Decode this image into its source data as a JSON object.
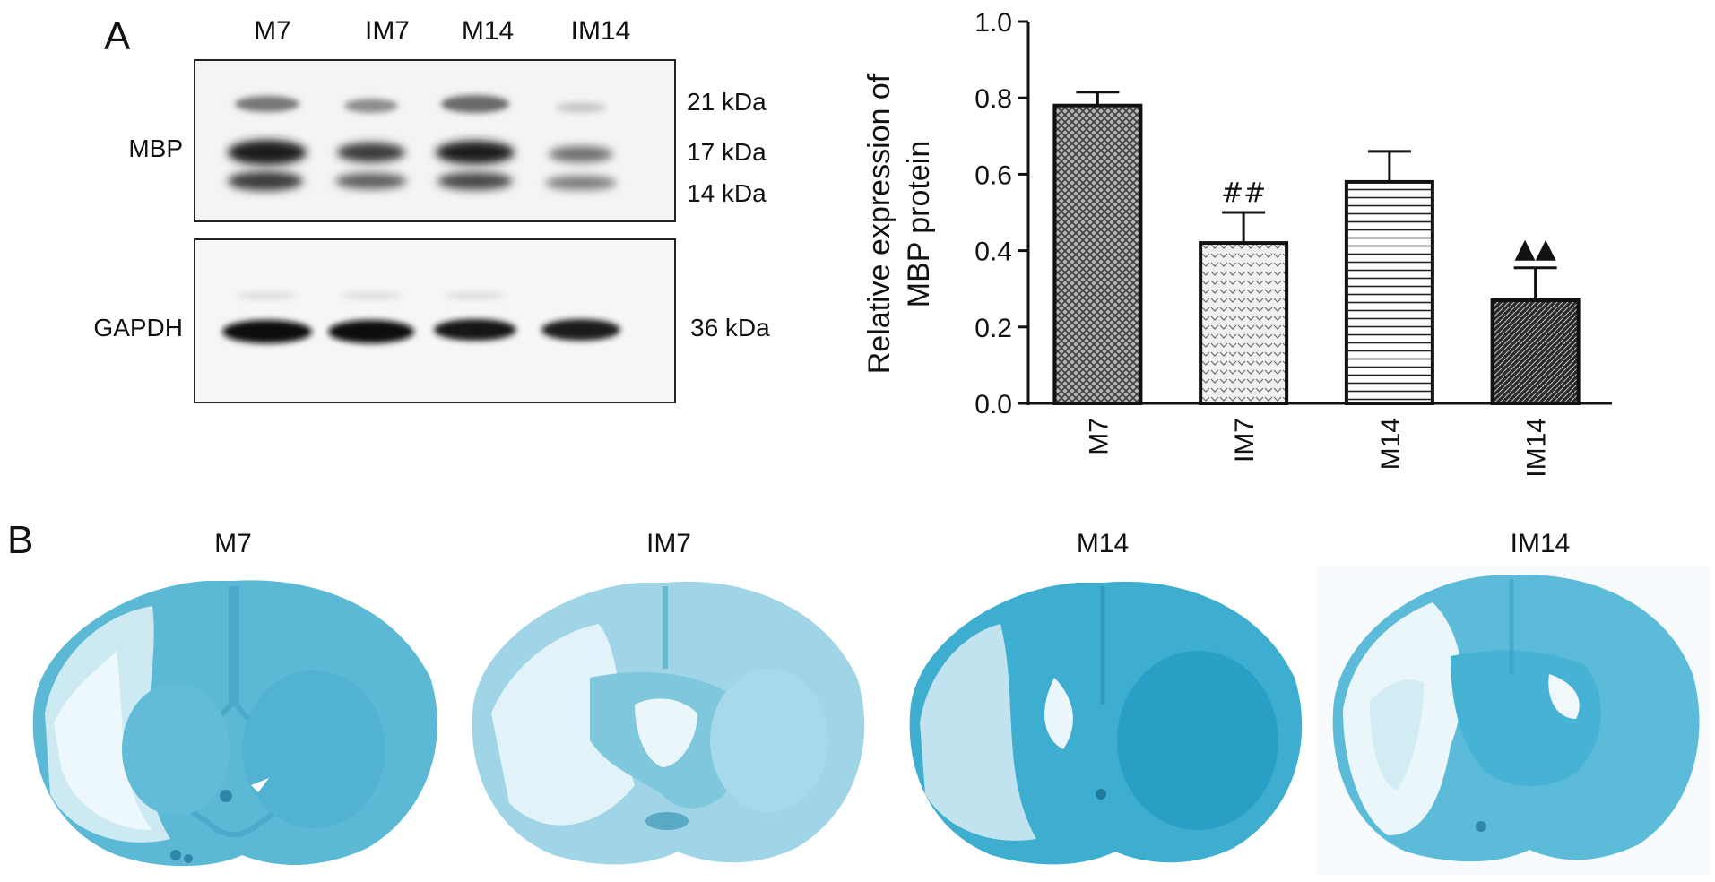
{
  "panel_a": {
    "letter": "A",
    "lanes": [
      "M7",
      "IM7",
      "M14",
      "IM14"
    ],
    "mbp_label": "MBP",
    "gapdh_label": "GAPDH",
    "mbp_kda": [
      "21 kDa",
      "17 kDa",
      "14 kDa"
    ],
    "gapdh_kda": "36 kDa"
  },
  "chart_data": {
    "type": "bar",
    "categories": [
      "M7",
      "IM7",
      "M14",
      "IM14"
    ],
    "values": [
      0.78,
      0.42,
      0.58,
      0.27
    ],
    "errors": [
      0.035,
      0.08,
      0.08,
      0.085
    ],
    "annotations": [
      "",
      "##",
      "",
      "▲▲"
    ],
    "title": "",
    "xlabel": "",
    "ylabel_lines": [
      "Relative expression of",
      "MBP protein"
    ],
    "ylim": [
      0,
      1.0
    ],
    "yticks": [
      "0.0",
      "0.2",
      "0.4",
      "0.6",
      "0.8",
      "1.0"
    ],
    "grid": false,
    "legend": "none"
  },
  "panel_b": {
    "letter": "B",
    "titles": [
      "M7",
      "IM7",
      "M14",
      "IM14"
    ]
  }
}
